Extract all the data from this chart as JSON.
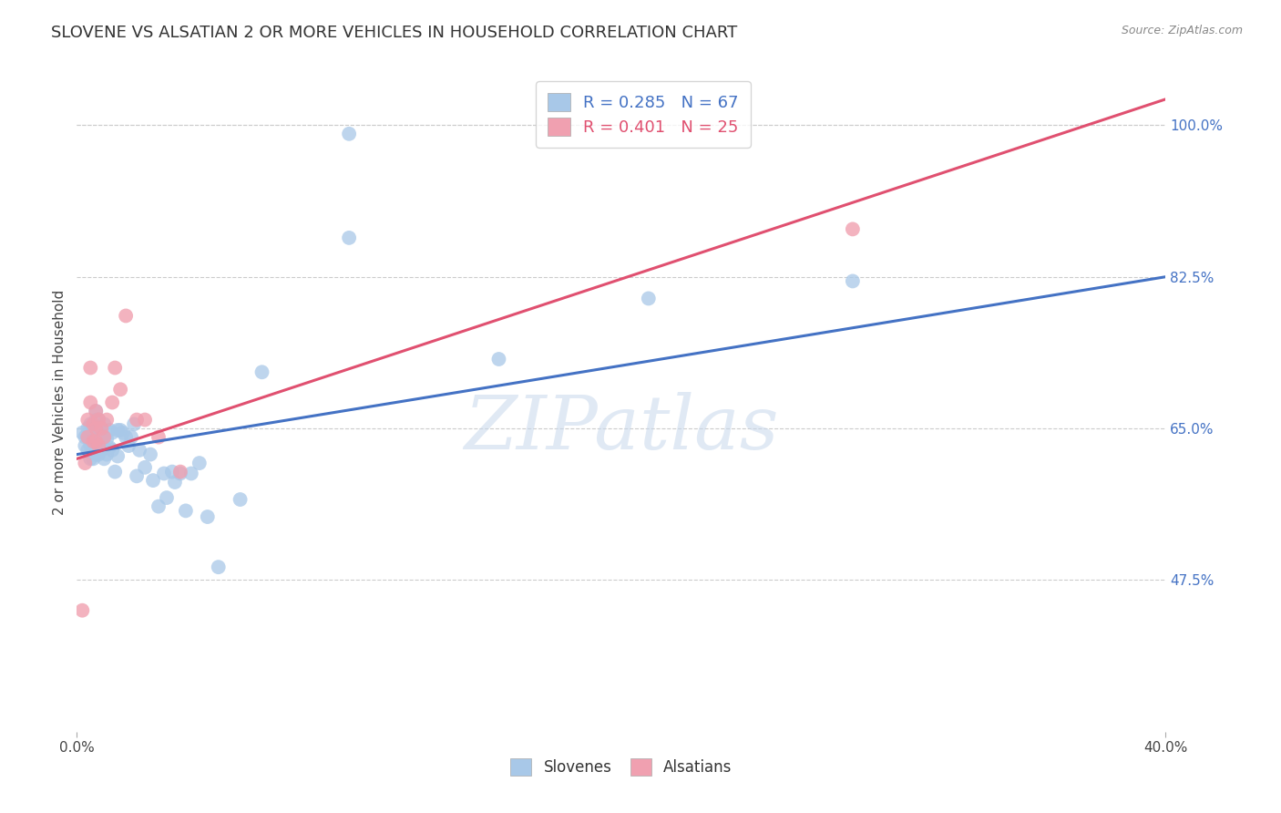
{
  "title": "SLOVENE VS ALSATIAN 2 OR MORE VEHICLES IN HOUSEHOLD CORRELATION CHART",
  "source": "Source: ZipAtlas.com",
  "ylabel": "2 or more Vehicles in Household",
  "xlim": [
    0.0,
    0.4
  ],
  "ylim": [
    0.3,
    1.06
  ],
  "ytick_positions": [
    0.475,
    0.65,
    0.825,
    1.0
  ],
  "ytick_labels": [
    "47.5%",
    "65.0%",
    "82.5%",
    "100.0%"
  ],
  "slovene_color": "#a8c8e8",
  "alsatian_color": "#f0a0b0",
  "slovene_line_color": "#4472c4",
  "alsatian_line_color": "#e05070",
  "blue_line_x": [
    0.0,
    0.4
  ],
  "blue_line_y": [
    0.62,
    0.825
  ],
  "pink_line_x": [
    0.0,
    0.4
  ],
  "pink_line_y": [
    0.615,
    1.03
  ],
  "slovene_points_x": [
    0.002,
    0.003,
    0.003,
    0.004,
    0.004,
    0.004,
    0.005,
    0.005,
    0.005,
    0.005,
    0.006,
    0.006,
    0.006,
    0.006,
    0.007,
    0.007,
    0.007,
    0.007,
    0.007,
    0.008,
    0.008,
    0.008,
    0.008,
    0.009,
    0.009,
    0.009,
    0.01,
    0.01,
    0.01,
    0.01,
    0.011,
    0.011,
    0.012,
    0.012,
    0.013,
    0.013,
    0.014,
    0.015,
    0.015,
    0.016,
    0.017,
    0.018,
    0.019,
    0.02,
    0.021,
    0.022,
    0.023,
    0.025,
    0.027,
    0.028,
    0.03,
    0.032,
    0.033,
    0.035,
    0.036,
    0.038,
    0.04,
    0.042,
    0.045,
    0.048,
    0.052,
    0.06,
    0.068,
    0.1,
    0.155,
    0.21,
    0.285
  ],
  "slovene_points_y": [
    0.645,
    0.63,
    0.64,
    0.625,
    0.64,
    0.65,
    0.615,
    0.63,
    0.64,
    0.655,
    0.615,
    0.625,
    0.635,
    0.65,
    0.62,
    0.63,
    0.645,
    0.66,
    0.67,
    0.62,
    0.63,
    0.645,
    0.66,
    0.625,
    0.638,
    0.65,
    0.615,
    0.628,
    0.64,
    0.655,
    0.62,
    0.638,
    0.628,
    0.648,
    0.625,
    0.645,
    0.6,
    0.618,
    0.648,
    0.648,
    0.645,
    0.64,
    0.63,
    0.64,
    0.655,
    0.595,
    0.625,
    0.605,
    0.62,
    0.59,
    0.56,
    0.598,
    0.57,
    0.6,
    0.588,
    0.598,
    0.555,
    0.598,
    0.61,
    0.548,
    0.49,
    0.568,
    0.715,
    0.87,
    0.73,
    0.8,
    0.82
  ],
  "alsatian_points_x": [
    0.002,
    0.003,
    0.004,
    0.004,
    0.005,
    0.005,
    0.006,
    0.006,
    0.007,
    0.007,
    0.007,
    0.008,
    0.008,
    0.009,
    0.01,
    0.011,
    0.013,
    0.014,
    0.016,
    0.018,
    0.022,
    0.025,
    0.03,
    0.038,
    0.285
  ],
  "alsatian_points_y": [
    0.44,
    0.61,
    0.64,
    0.66,
    0.68,
    0.72,
    0.635,
    0.655,
    0.635,
    0.65,
    0.67,
    0.63,
    0.66,
    0.65,
    0.64,
    0.66,
    0.68,
    0.72,
    0.695,
    0.78,
    0.66,
    0.66,
    0.64,
    0.6,
    0.88
  ],
  "extra_blue_high_x": [
    0.1
  ],
  "extra_blue_high_y": [
    0.99
  ],
  "watermark_text": "ZIPatlas",
  "background_color": "#ffffff",
  "grid_color": "#cccccc",
  "title_fontsize": 13,
  "axis_label_fontsize": 11,
  "tick_fontsize": 11,
  "legend_fontsize": 13
}
